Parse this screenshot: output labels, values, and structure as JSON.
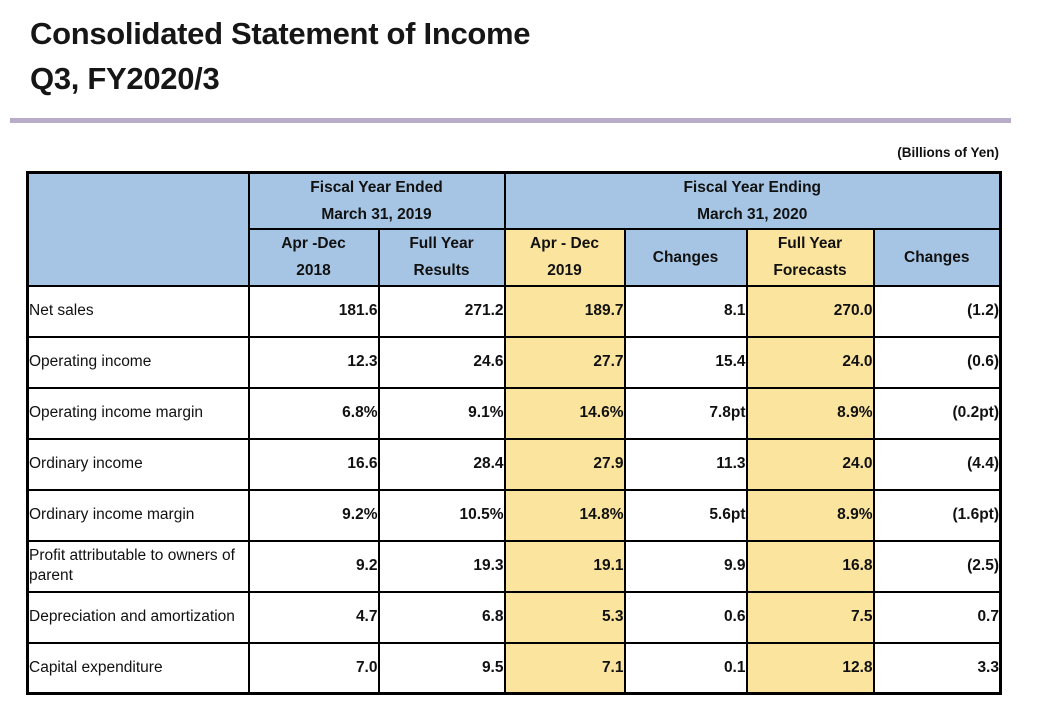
{
  "page": {
    "title_line1": "Consolidated Statement of Income",
    "title_line2": "Q3, FY2020/3",
    "units_note": "(Billions of Yen)"
  },
  "colors": {
    "header_blue": "#A6C5E4",
    "highlight_yellow": "#FAE49E",
    "divider_lavender": "#B7ADC8",
    "border_black": "#000000"
  },
  "table": {
    "group_headers": [
      {
        "line1": "Fiscal Year Ended",
        "line2": "March 31, 2019"
      },
      {
        "line1": "Fiscal Year Ending",
        "line2": "March 31, 2020"
      }
    ],
    "column_headers": [
      {
        "line1": "Apr -Dec",
        "line2": "2018",
        "bg": "blue"
      },
      {
        "line1": "Full Year",
        "line2": "Results",
        "bg": "blue"
      },
      {
        "line1": "Apr - Dec",
        "line2": "2019",
        "bg": "yellow"
      },
      {
        "line1": "Changes",
        "line2": "",
        "bg": "blue"
      },
      {
        "line1": "Full Year",
        "line2": "Forecasts",
        "bg": "yellow"
      },
      {
        "line1": "Changes",
        "line2": "",
        "bg": "blue"
      }
    ],
    "highlight_column_indexes": [
      2,
      4
    ],
    "rows": [
      {
        "label": "Net sales",
        "values": [
          "181.6",
          "271.2",
          "189.7",
          "8.1",
          "270.0",
          "(1.2)"
        ]
      },
      {
        "label": "Operating income",
        "values": [
          "12.3",
          "24.6",
          "27.7",
          "15.4",
          "24.0",
          "(0.6)"
        ]
      },
      {
        "label": "Operating income margin",
        "values": [
          "6.8%",
          "9.1%",
          "14.6%",
          "7.8pt",
          "8.9%",
          "(0.2pt)"
        ]
      },
      {
        "label": "Ordinary income",
        "values": [
          "16.6",
          "28.4",
          "27.9",
          "11.3",
          "24.0",
          "(4.4)"
        ]
      },
      {
        "label": "Ordinary income margin",
        "values": [
          "9.2%",
          "10.5%",
          "14.8%",
          "5.6pt",
          "8.9%",
          "(1.6pt)"
        ]
      },
      {
        "label": "Profit attributable to owners of parent",
        "values": [
          "9.2",
          "19.3",
          "19.1",
          "9.9",
          "16.8",
          "(2.5)"
        ]
      },
      {
        "label": "Depreciation and amortization",
        "values": [
          "4.7",
          "6.8",
          "5.3",
          "0.6",
          "7.5",
          "0.7"
        ]
      },
      {
        "label": "Capital expenditure",
        "values": [
          "7.0",
          "9.5",
          "7.1",
          "0.1",
          "12.8",
          "3.3"
        ]
      }
    ]
  }
}
